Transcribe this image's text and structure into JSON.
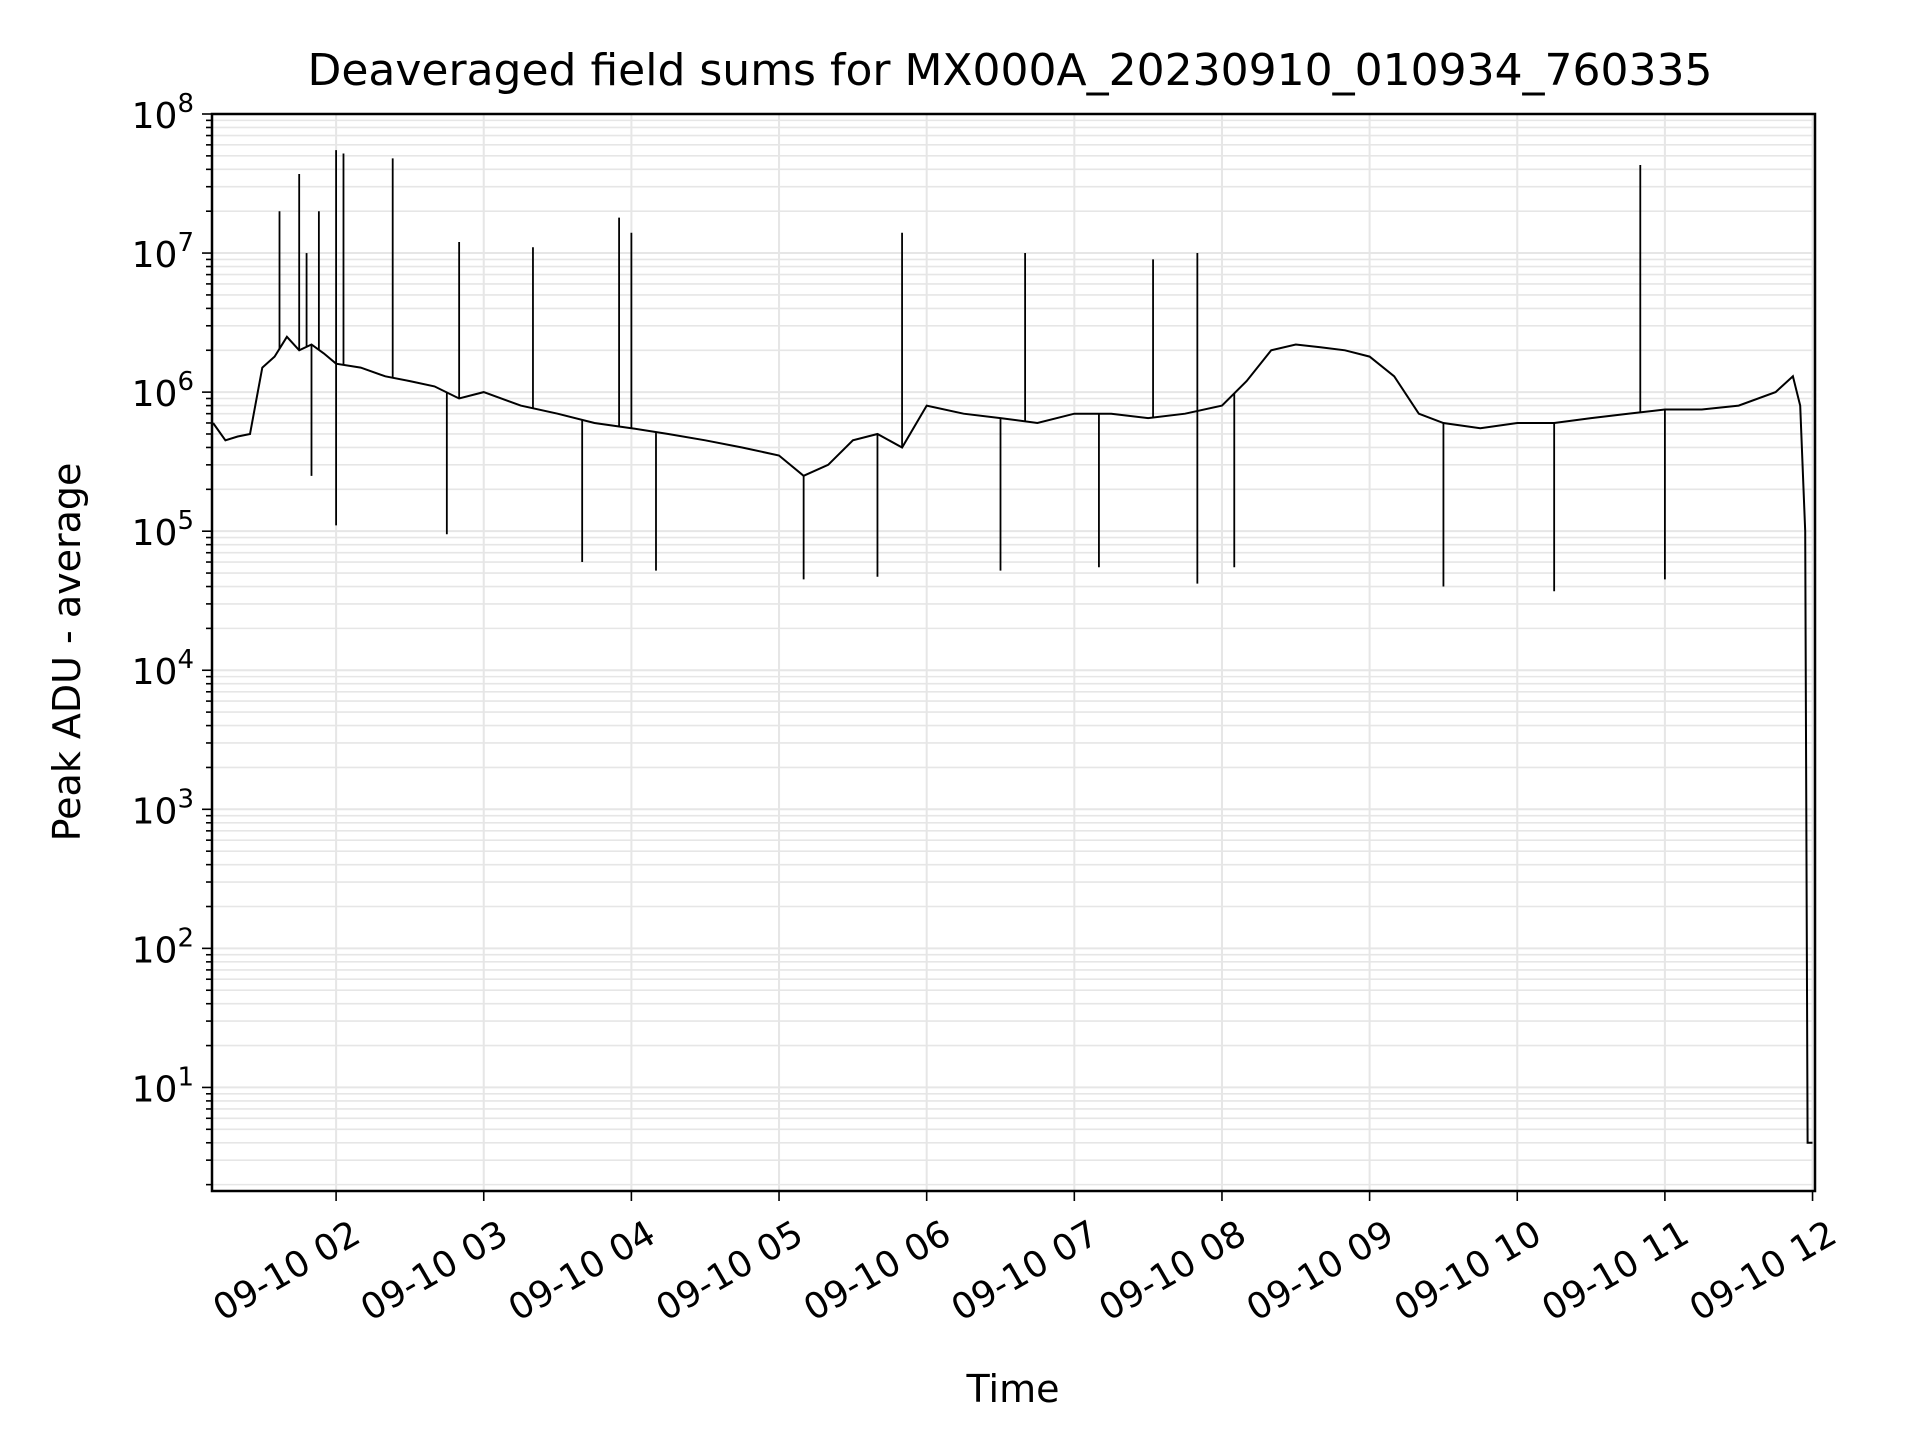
{
  "chart_data": {
    "type": "line",
    "title": "Deaveraged field sums for MX000A_20230910_010934_760335",
    "xlabel": "Time",
    "ylabel": "Peak ADU - average",
    "yscale": "log",
    "ylim": [
      1.8,
      100000000
    ],
    "xlim": [
      "2023-09-10 01:09:34",
      "2023-09-10 12:01:00"
    ],
    "grid": true,
    "x_ticks": [
      "09-10 02",
      "09-10 03",
      "09-10 04",
      "09-10 05",
      "09-10 06",
      "09-10 07",
      "09-10 08",
      "09-10 09",
      "09-10 10",
      "09-10 11",
      "09-10 12"
    ],
    "y_ticks": [
      {
        "value": 10,
        "base": "10",
        "exp": "1"
      },
      {
        "value": 100,
        "base": "10",
        "exp": "2"
      },
      {
        "value": 1000,
        "base": "10",
        "exp": "3"
      },
      {
        "value": 10000,
        "base": "10",
        "exp": "4"
      },
      {
        "value": 100000,
        "base": "10",
        "exp": "5"
      },
      {
        "value": 1000000,
        "base": "10",
        "exp": "6"
      },
      {
        "value": 10000000,
        "base": "10",
        "exp": "7"
      },
      {
        "value": 100000000,
        "base": "10",
        "exp": "8"
      }
    ],
    "series": [
      {
        "color": "#000000",
        "x": [
          "2023-09-10 01:10",
          "2023-09-10 01:15",
          "2023-09-10 01:20",
          "2023-09-10 01:25",
          "2023-09-10 01:30",
          "2023-09-10 01:35",
          "2023-09-10 01:40",
          "2023-09-10 01:45",
          "2023-09-10 01:50",
          "2023-09-10 01:55",
          "2023-09-10 02:00",
          "2023-09-10 02:10",
          "2023-09-10 02:20",
          "2023-09-10 02:30",
          "2023-09-10 02:40",
          "2023-09-10 02:50",
          "2023-09-10 03:00",
          "2023-09-10 03:15",
          "2023-09-10 03:30",
          "2023-09-10 03:45",
          "2023-09-10 04:00",
          "2023-09-10 04:15",
          "2023-09-10 04:30",
          "2023-09-10 04:45",
          "2023-09-10 05:00",
          "2023-09-10 05:10",
          "2023-09-10 05:20",
          "2023-09-10 05:30",
          "2023-09-10 05:40",
          "2023-09-10 05:50",
          "2023-09-10 06:00",
          "2023-09-10 06:15",
          "2023-09-10 06:30",
          "2023-09-10 06:45",
          "2023-09-10 07:00",
          "2023-09-10 07:15",
          "2023-09-10 07:30",
          "2023-09-10 07:45",
          "2023-09-10 08:00",
          "2023-09-10 08:10",
          "2023-09-10 08:20",
          "2023-09-10 08:30",
          "2023-09-10 08:40",
          "2023-09-10 08:50",
          "2023-09-10 09:00",
          "2023-09-10 09:10",
          "2023-09-10 09:20",
          "2023-09-10 09:30",
          "2023-09-10 09:45",
          "2023-09-10 10:00",
          "2023-09-10 10:15",
          "2023-09-10 10:30",
          "2023-09-10 10:45",
          "2023-09-10 11:00",
          "2023-09-10 11:15",
          "2023-09-10 11:30",
          "2023-09-10 11:45",
          "2023-09-10 11:52",
          "2023-09-10 11:55",
          "2023-09-10 11:57",
          "2023-09-10 11:58",
          "2023-09-10 12:00"
        ],
        "y": [
          600000,
          450000,
          480000,
          500000,
          1500000,
          1800000,
          2500000,
          2000000,
          2200000,
          1900000,
          1600000,
          1500000,
          1300000,
          1200000,
          1100000,
          900000,
          1000000,
          800000,
          700000,
          600000,
          550000,
          500000,
          450000,
          400000,
          350000,
          250000,
          300000,
          450000,
          500000,
          400000,
          800000,
          700000,
          650000,
          600000,
          700000,
          700000,
          650000,
          700000,
          800000,
          1200000,
          2000000,
          2200000,
          2100000,
          2000000,
          1800000,
          1300000,
          700000,
          600000,
          550000,
          600000,
          600000,
          650000,
          700000,
          750000,
          750000,
          800000,
          1000000,
          1300000,
          800000,
          100000,
          4,
          4
        ],
        "spikes": [
          {
            "x": "2023-09-10 01:37",
            "y": 20000000
          },
          {
            "x": "2023-09-10 01:45",
            "y": 37000000
          },
          {
            "x": "2023-09-10 01:48",
            "y": 10000000
          },
          {
            "x": "2023-09-10 01:53",
            "y": 20000000
          },
          {
            "x": "2023-09-10 02:00",
            "y": 55000000
          },
          {
            "x": "2023-09-10 02:03",
            "y": 52000000
          },
          {
            "x": "2023-09-10 02:23",
            "y": 48000000
          },
          {
            "x": "2023-09-10 02:50",
            "y": 12000000
          },
          {
            "x": "2023-09-10 03:20",
            "y": 11000000
          },
          {
            "x": "2023-09-10 03:55",
            "y": 18000000
          },
          {
            "x": "2023-09-10 04:00",
            "y": 14000000
          },
          {
            "x": "2023-09-10 05:50",
            "y": 14000000
          },
          {
            "x": "2023-09-10 06:40",
            "y": 10000000
          },
          {
            "x": "2023-09-10 07:32",
            "y": 9000000
          },
          {
            "x": "2023-09-10 07:50",
            "y": 10000000
          },
          {
            "x": "2023-09-10 10:50",
            "y": 43000000
          }
        ],
        "dips": [
          {
            "x": "2023-09-10 01:50",
            "y": 250000
          },
          {
            "x": "2023-09-10 02:00",
            "y": 110000
          },
          {
            "x": "2023-09-10 02:45",
            "y": 95000
          },
          {
            "x": "2023-09-10 03:40",
            "y": 60000
          },
          {
            "x": "2023-09-10 04:10",
            "y": 52000
          },
          {
            "x": "2023-09-10 05:10",
            "y": 45000
          },
          {
            "x": "2023-09-10 05:40",
            "y": 47000
          },
          {
            "x": "2023-09-10 06:30",
            "y": 52000
          },
          {
            "x": "2023-09-10 07:10",
            "y": 55000
          },
          {
            "x": "2023-09-10 07:50",
            "y": 42000
          },
          {
            "x": "2023-09-10 08:05",
            "y": 55000
          },
          {
            "x": "2023-09-10 09:30",
            "y": 40000
          },
          {
            "x": "2023-09-10 10:15",
            "y": 37000
          },
          {
            "x": "2023-09-10 11:00",
            "y": 45000
          }
        ]
      }
    ]
  }
}
